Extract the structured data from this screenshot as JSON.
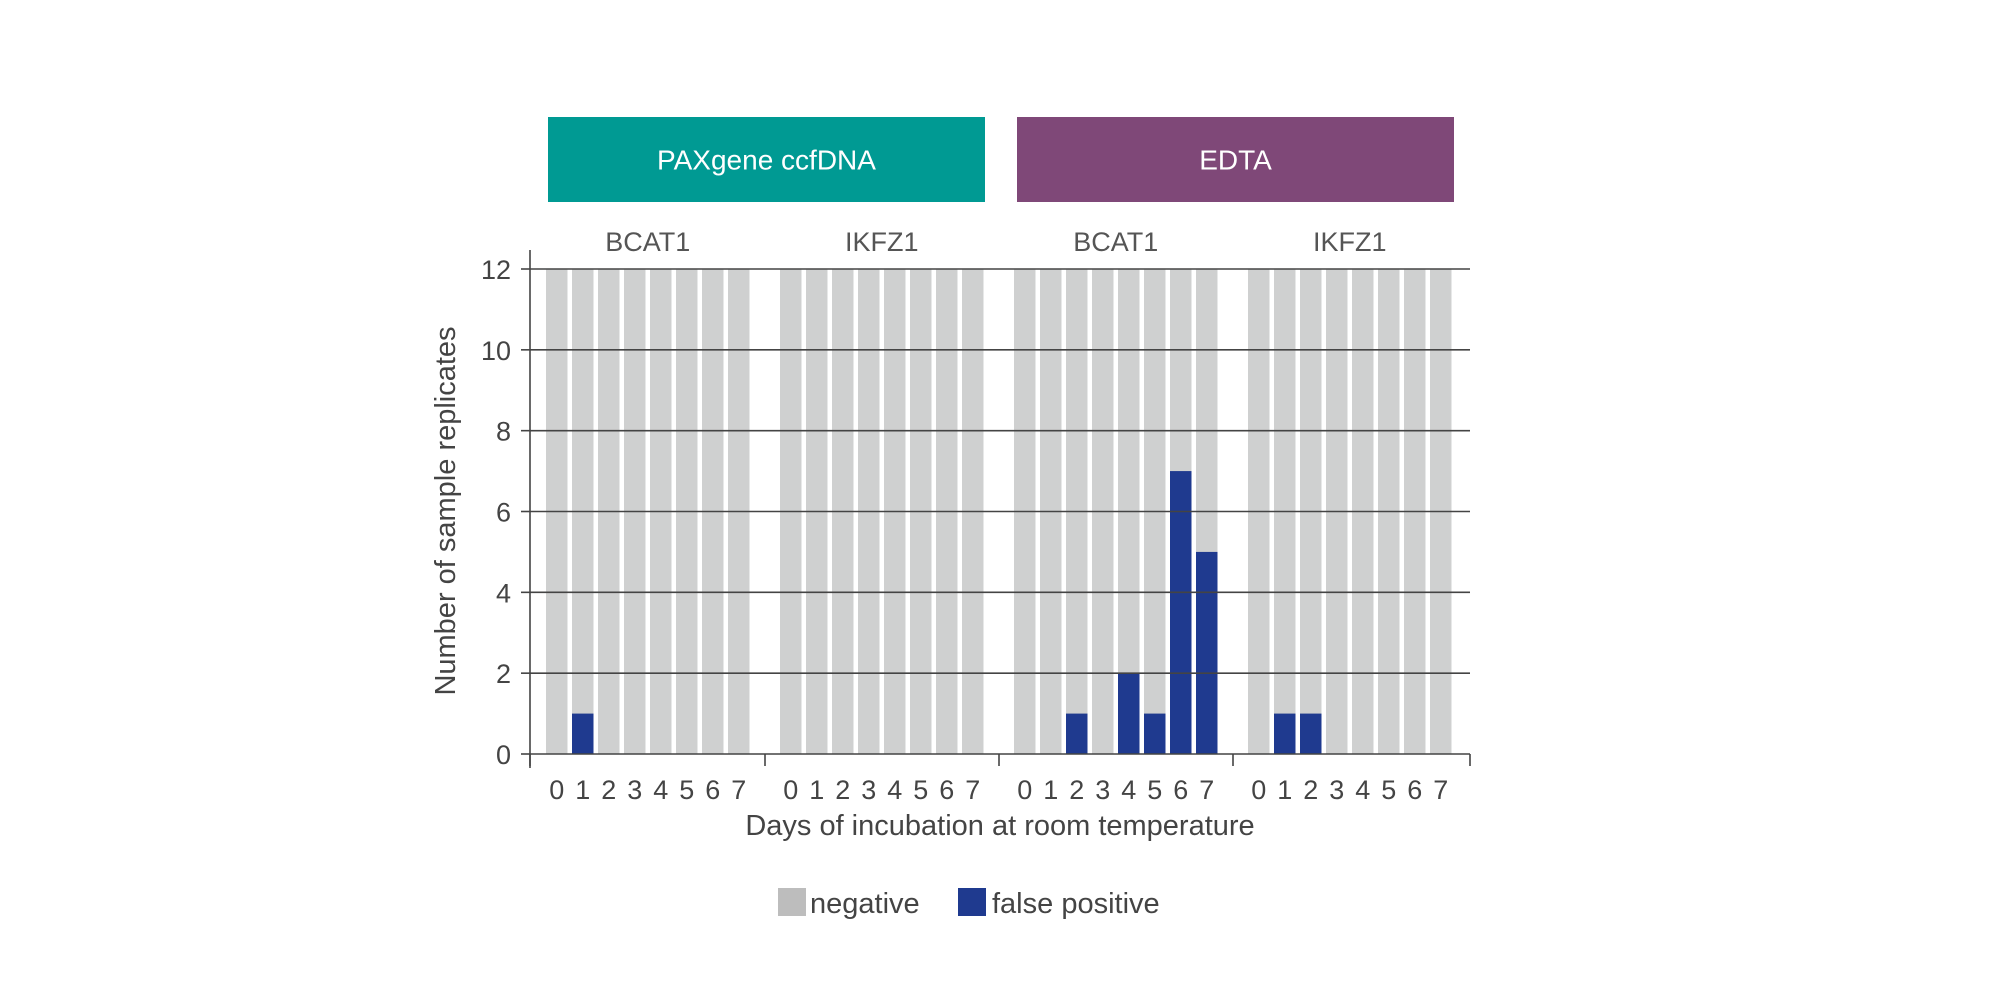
{
  "chart_data": {
    "type": "bar",
    "stacked": true,
    "ylabel": "Number of sample replicates",
    "xlabel": "Days of incubation at room temperature",
    "ylim": [
      0,
      12
    ],
    "yticks": [
      0,
      2,
      4,
      6,
      8,
      10,
      12
    ],
    "grid": "horizontal",
    "legend_position": "bottom",
    "colors": {
      "negative": "#cfd0d0",
      "false_positive": "#1f3a8f",
      "paxgene_header": "#009a93",
      "edta_header": "#7f4878",
      "grid": "#444444"
    },
    "headers": [
      {
        "label": "PAXgene ccfDNA",
        "color": "#009a93"
      },
      {
        "label": "EDTA",
        "color": "#7f4878"
      }
    ],
    "categories": [
      "0",
      "1",
      "2",
      "3",
      "4",
      "5",
      "6",
      "7"
    ],
    "legend": [
      {
        "name": "negative",
        "color": "#bdbdbd"
      },
      {
        "name": "false positive",
        "color": "#1f3a8f"
      }
    ],
    "groups": [
      {
        "label": "BCAT1",
        "header": "PAXgene ccfDNA",
        "false_positive": [
          0,
          1,
          0,
          0,
          0,
          0,
          0,
          0
        ],
        "total": 12
      },
      {
        "label": "IKFZ1",
        "header": "PAXgene ccfDNA",
        "false_positive": [
          0,
          0,
          0,
          0,
          0,
          0,
          0,
          0
        ],
        "total": 12
      },
      {
        "label": "BCAT1",
        "header": "EDTA",
        "false_positive": [
          0,
          0,
          1,
          0,
          2,
          1,
          7,
          5
        ],
        "total": 12
      },
      {
        "label": "IKFZ1",
        "header": "EDTA",
        "false_positive": [
          0,
          1,
          1,
          0,
          0,
          0,
          0,
          0
        ],
        "total": 12
      }
    ]
  }
}
